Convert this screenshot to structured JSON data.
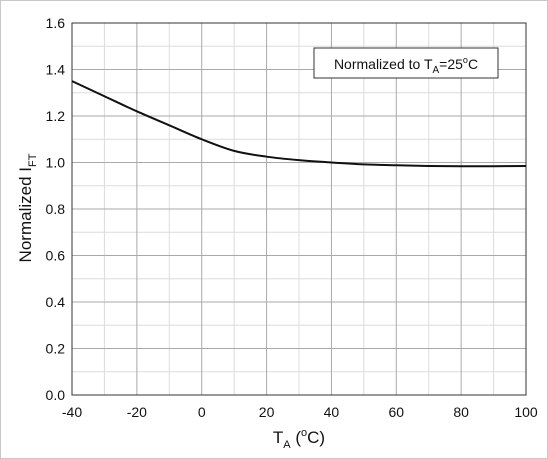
{
  "chart_data": {
    "type": "line",
    "xlabel": {
      "main": "T",
      "sub": "A",
      "rest_open": " (",
      "sup": "o",
      "rest_close": "C)"
    },
    "ylabel": {
      "main": "Normalized I",
      "sub": "FT"
    },
    "annotation": {
      "text1": "Normalized to T",
      "sub": "A",
      "text2": "=25",
      "sup": "o",
      "text3": "C"
    },
    "xlim": [
      -40,
      100
    ],
    "ylim": [
      0.0,
      1.6
    ],
    "x_ticks": [
      -40,
      -20,
      0,
      20,
      40,
      60,
      80,
      100
    ],
    "x_tick_labels": [
      "-40",
      "-20",
      "0",
      "20",
      "40",
      "60",
      "80",
      "100"
    ],
    "y_ticks": [
      0.0,
      0.2,
      0.4,
      0.6,
      0.8,
      1.0,
      1.2,
      1.4,
      1.6
    ],
    "y_tick_labels": [
      "0.0",
      "0.2",
      "0.4",
      "0.6",
      "0.8",
      "1.0",
      "1.2",
      "1.4",
      "1.6"
    ],
    "x_minor_step": 10,
    "y_minor_step": 0.1,
    "grid": true,
    "series": [
      {
        "x": [
          -40,
          -30,
          -20,
          -10,
          0,
          10,
          20,
          30,
          40,
          50,
          60,
          70,
          80,
          90,
          100
        ],
        "y": [
          1.35,
          1.285,
          1.22,
          1.16,
          1.1,
          1.05,
          1.025,
          1.01,
          1.0,
          0.992,
          0.988,
          0.985,
          0.984,
          0.984,
          0.985
        ]
      }
    ]
  }
}
